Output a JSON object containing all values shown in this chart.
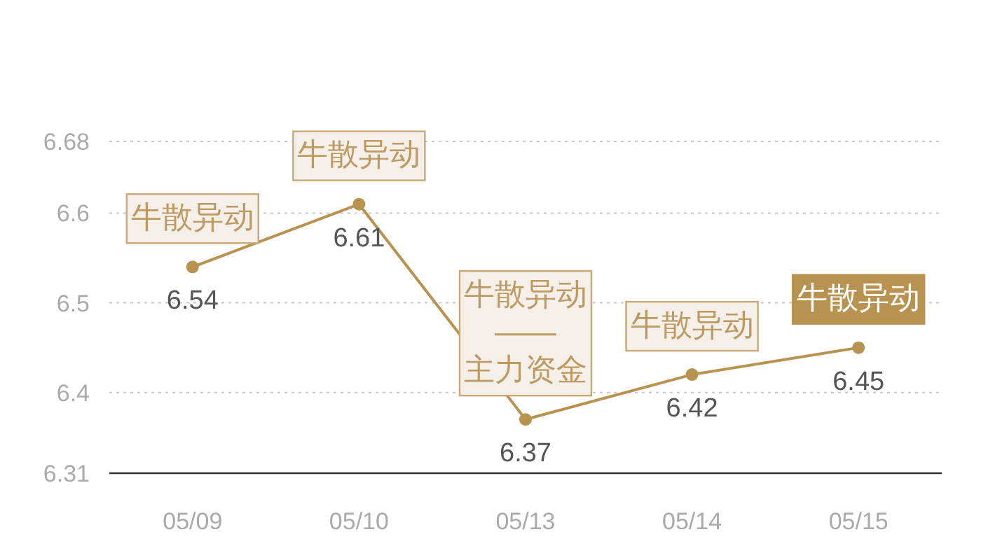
{
  "chart_data": {
    "type": "line",
    "categories": [
      "05/09",
      "05/10",
      "05/13",
      "05/14",
      "05/15"
    ],
    "series": [
      {
        "color": "#b8924f",
        "values": [
          6.54,
          6.61,
          6.37,
          6.42,
          6.45
        ]
      }
    ],
    "ylim": [
      6.31,
      6.68
    ],
    "yticks": [
      6.31,
      6.4,
      6.5,
      6.6,
      6.68
    ],
    "grid": "y",
    "marker": "circle",
    "line_style": "solid",
    "data_labels": true,
    "annotations": [
      {
        "text": "牛散异动",
        "x": "05/09",
        "y": 6.54
      },
      {
        "text": "牛散异动",
        "x": "05/10",
        "y": 6.61
      },
      {
        "text": "牛散异动\n——\n主力资金",
        "x": "05/13",
        "y": 6.37
      },
      {
        "text": "牛散异动",
        "x": "05/14",
        "y": 6.42
      },
      {
        "text": "牛散异动",
        "x": "05/15",
        "y": 6.45
      }
    ]
  }
}
